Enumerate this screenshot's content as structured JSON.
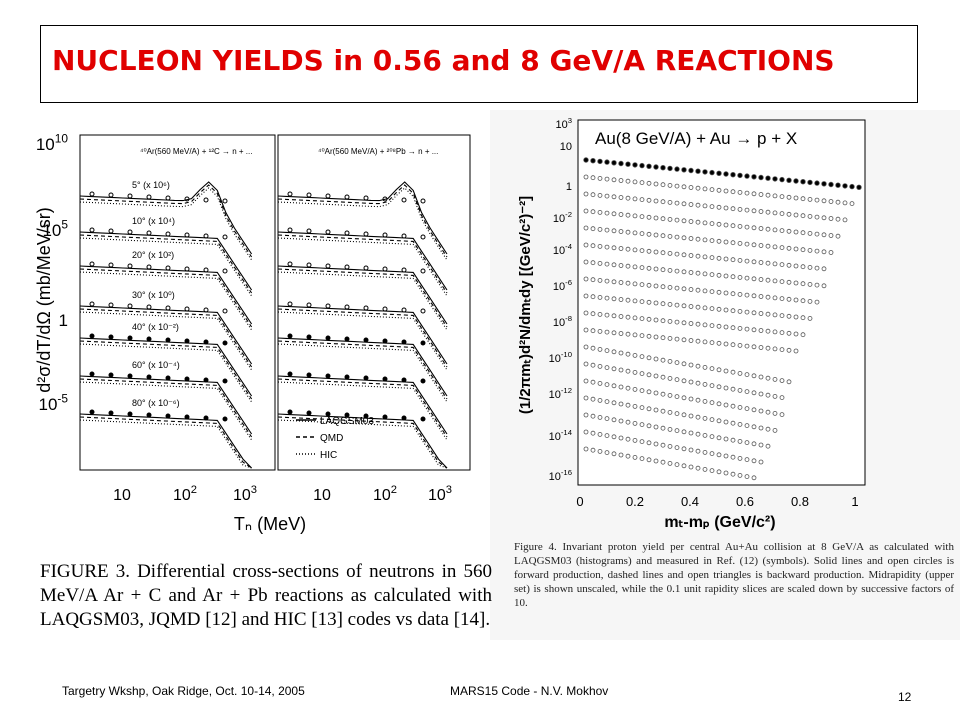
{
  "title": "NUCLEON YIELDS in 0.56 and 8 GeV/A REACTIONS",
  "left_figure": {
    "y_axis_label": "d²σ/dT/dΩ (mb/MeV/sr)",
    "x_axis_label": "Tₙ (MeV)",
    "panel_headers": [
      "⁴⁰Ar(560 MeV/A) + ¹²C → n + ...",
      "⁴⁰Ar(560 MeV/A) + ²⁰⁸Pb → n + ..."
    ],
    "angle_labels": [
      "5° (x 10⁶)",
      "10° (x 10⁴)",
      "20° (x 10²)",
      "30° (x 10⁰)",
      "40° (x 10⁻²)",
      "60° (x 10⁻⁴)",
      "80° (x 10⁻⁶)"
    ],
    "legend": [
      "LAQGSM03",
      "QMD",
      "HIC"
    ],
    "y_ticks": [
      {
        "base": "10",
        "exp": "10"
      },
      {
        "base": "10",
        "exp": "5"
      },
      {
        "base": "1"
      },
      {
        "base": "10",
        "exp": "-5"
      }
    ],
    "x_ticks": [
      {
        "base": "10"
      },
      {
        "base": "10",
        "exp": "2"
      },
      {
        "base": "10",
        "exp": "3"
      }
    ]
  },
  "left_caption": "FIGURE 3. Differential cross-sections of neutrons in 560 MeV/A Ar + C and Ar + Pb reactions as calculated with LAQGSM03, JQMD [12] and HIC [13] codes vs data [14].",
  "right_figure": {
    "title": "Au(8 GeV/A) + Au → p + X",
    "y_axis_label": "(1/2πmₜ)d²N/dmₜdy [(GeV/c²)⁻²]",
    "x_axis_label": "mₜ-mₚ (GeV/c²)",
    "x_ticks": [
      "0",
      "0.2",
      "0.4",
      "0.6",
      "0.8",
      "1"
    ],
    "y_ticks": [
      {
        "base": "10",
        "exp": "3"
      },
      {
        "base": "10"
      },
      {
        "base": "1"
      },
      {
        "base": "10",
        "exp": "-2"
      },
      {
        "base": "10",
        "exp": "-4"
      },
      {
        "base": "10",
        "exp": "-6"
      },
      {
        "base": "10",
        "exp": "-8"
      },
      {
        "base": "10",
        "exp": "-10"
      },
      {
        "base": "10",
        "exp": "-12"
      },
      {
        "base": "10",
        "exp": "-14"
      },
      {
        "base": "10",
        "exp": "-16"
      }
    ]
  },
  "right_caption": "Figure 4. Invariant proton yield per central Au+Au collision at 8 GeV/A as calculated with LAQGSM03 (histograms) and measured in Ref. (12) (symbols). Solid lines and open circles is forward production, dashed lines and open triangles is backward production. Midrapidity (upper set) is shown unscaled, while the 0.1 unit rapidity slices are scaled down by successive factors of 10.",
  "footer": {
    "event": "Targetry Wkshp, Oak Ridge, Oct. 10-14, 2005",
    "talk": "MARS15 Code - N.V. Mokhov",
    "page": "12"
  }
}
